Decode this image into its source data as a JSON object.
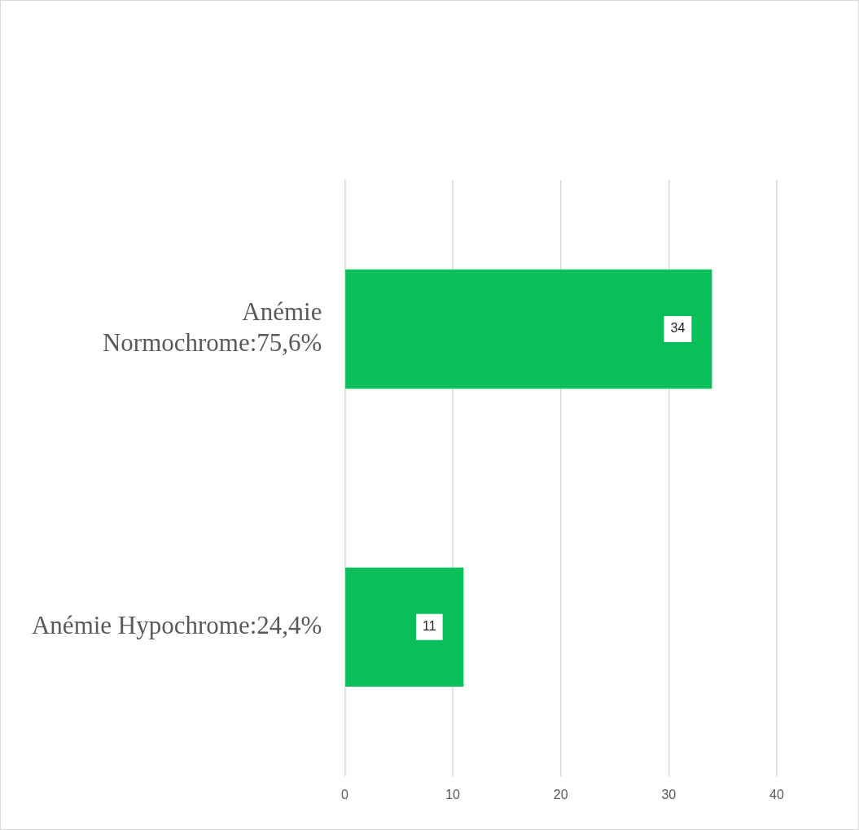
{
  "chart_data": {
    "type": "bar",
    "orientation": "horizontal",
    "categories": [
      "Anémie Normochrome:75,6%",
      "Anémie Hypochrome:24,4%"
    ],
    "values": [
      34,
      11
    ],
    "color": "#0abf5a",
    "xlim": [
      0,
      40
    ],
    "xticks": [
      0,
      10,
      20,
      30,
      40
    ],
    "grid": "x",
    "data_labels": true,
    "legend": false
  }
}
